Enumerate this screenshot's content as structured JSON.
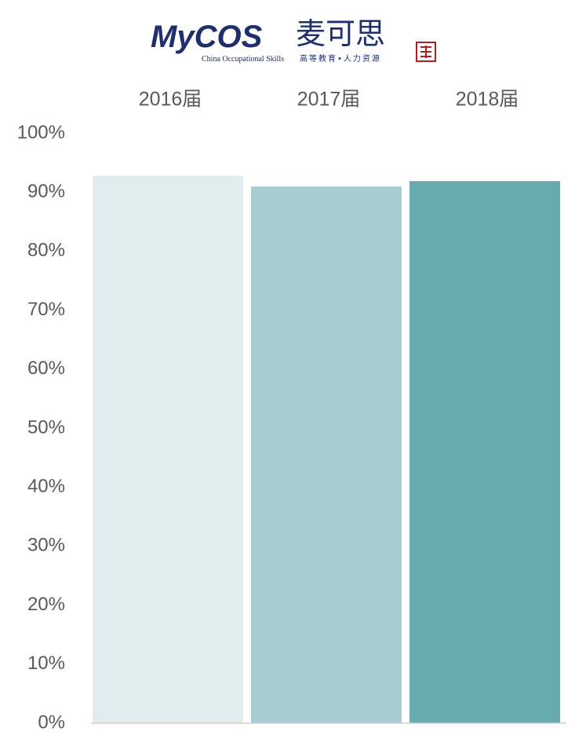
{
  "logo": {
    "brand": "MyCOS",
    "chinese": "麦可思",
    "tagline": "China Occupational Skills",
    "tagline_cn": "高等教育•人力资源"
  },
  "chart_data": {
    "type": "bar",
    "categories": [
      "2016届",
      "2017届",
      "2018届"
    ],
    "values": [
      92.8,
      91.0,
      91.9
    ],
    "colors": [
      "#e0ecee",
      "#a8cdd0",
      "#67abae"
    ],
    "ylim": [
      0,
      100
    ],
    "yticks": [
      {
        "value": 0,
        "label": "0%"
      },
      {
        "value": 10,
        "label": "10%"
      },
      {
        "value": 20,
        "label": "20%"
      },
      {
        "value": 30,
        "label": "30%"
      },
      {
        "value": 40,
        "label": "40%"
      },
      {
        "value": 50,
        "label": "50%"
      },
      {
        "value": 60,
        "label": "60%"
      },
      {
        "value": 70,
        "label": "70%"
      },
      {
        "value": 80,
        "label": "80%"
      },
      {
        "value": 90,
        "label": "90%"
      },
      {
        "value": 100,
        "label": "100%"
      }
    ],
    "grid": false
  }
}
